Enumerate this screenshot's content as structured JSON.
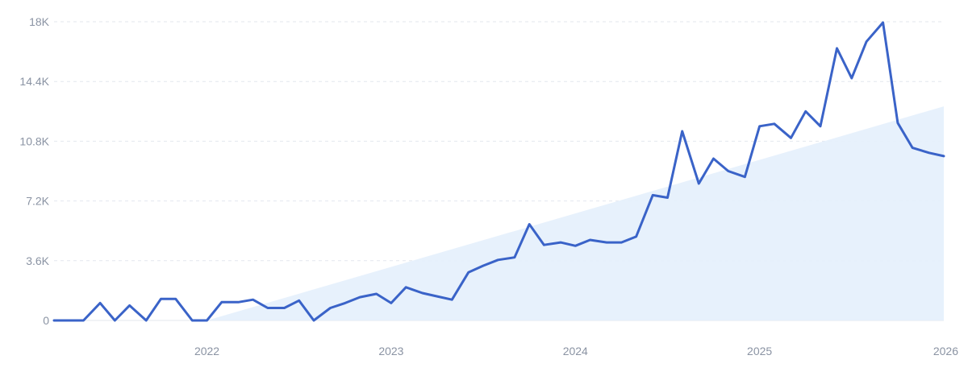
{
  "chart_data": {
    "type": "line",
    "title": "",
    "xlabel": "",
    "ylabel": "",
    "ylim": [
      0,
      18000
    ],
    "y_ticks": [
      0,
      3600,
      7200,
      10800,
      14400,
      18000
    ],
    "y_tick_labels": [
      "0",
      "3.6K",
      "7.2K",
      "10.8K",
      "14.4K",
      "18K"
    ],
    "x_range": [
      2021.17,
      2026.0
    ],
    "x_ticks": [
      2022,
      2023,
      2024,
      2025,
      2026
    ],
    "x_tick_labels": [
      "2022",
      "2023",
      "2024",
      "2025",
      "2026"
    ],
    "grid": true,
    "line_color": "#3a63c8",
    "trend_fill_color": "#e4effc",
    "series": [
      {
        "values": [
          [
            2021.17,
            0
          ],
          [
            2021.25,
            0
          ],
          [
            2021.33,
            0
          ],
          [
            2021.42,
            1050
          ],
          [
            2021.5,
            0
          ],
          [
            2021.58,
            900
          ],
          [
            2021.67,
            0
          ],
          [
            2021.75,
            1300
          ],
          [
            2021.83,
            1300
          ],
          [
            2021.92,
            0
          ],
          [
            2022.0,
            0
          ],
          [
            2022.08,
            1100
          ],
          [
            2022.17,
            1100
          ],
          [
            2022.25,
            1250
          ],
          [
            2022.33,
            750
          ],
          [
            2022.42,
            750
          ],
          [
            2022.5,
            1200
          ],
          [
            2022.58,
            0
          ],
          [
            2022.67,
            750
          ],
          [
            2022.75,
            1050
          ],
          [
            2022.83,
            1400
          ],
          [
            2022.92,
            1600
          ],
          [
            2023.0,
            1050
          ],
          [
            2023.08,
            2000
          ],
          [
            2023.17,
            1650
          ],
          [
            2023.25,
            1450
          ],
          [
            2023.33,
            1250
          ],
          [
            2023.42,
            2900
          ],
          [
            2023.5,
            3300
          ],
          [
            2023.58,
            3650
          ],
          [
            2023.67,
            3800
          ],
          [
            2023.75,
            5800
          ],
          [
            2023.83,
            4550
          ],
          [
            2023.92,
            4700
          ],
          [
            2024.0,
            4500
          ],
          [
            2024.08,
            4850
          ],
          [
            2024.17,
            4700
          ],
          [
            2024.25,
            4700
          ],
          [
            2024.33,
            5050
          ],
          [
            2024.42,
            7550
          ],
          [
            2024.5,
            7400
          ],
          [
            2024.58,
            11400
          ],
          [
            2024.67,
            8250
          ],
          [
            2024.75,
            9750
          ],
          [
            2024.83,
            9000
          ],
          [
            2024.92,
            8650
          ],
          [
            2025.0,
            11700
          ],
          [
            2025.08,
            11850
          ],
          [
            2025.17,
            11000
          ],
          [
            2025.25,
            12600
          ],
          [
            2025.33,
            11700
          ],
          [
            2025.42,
            16400
          ],
          [
            2025.5,
            14600
          ],
          [
            2025.58,
            16800
          ],
          [
            2025.67,
            17950
          ],
          [
            2025.75,
            11900
          ],
          [
            2025.83,
            10400
          ],
          [
            2025.92,
            10100
          ],
          [
            2026.0,
            9900
          ]
        ]
      }
    ],
    "trend": {
      "x": [
        2022.0,
        2026.0
      ],
      "y": [
        0,
        12900
      ]
    }
  }
}
